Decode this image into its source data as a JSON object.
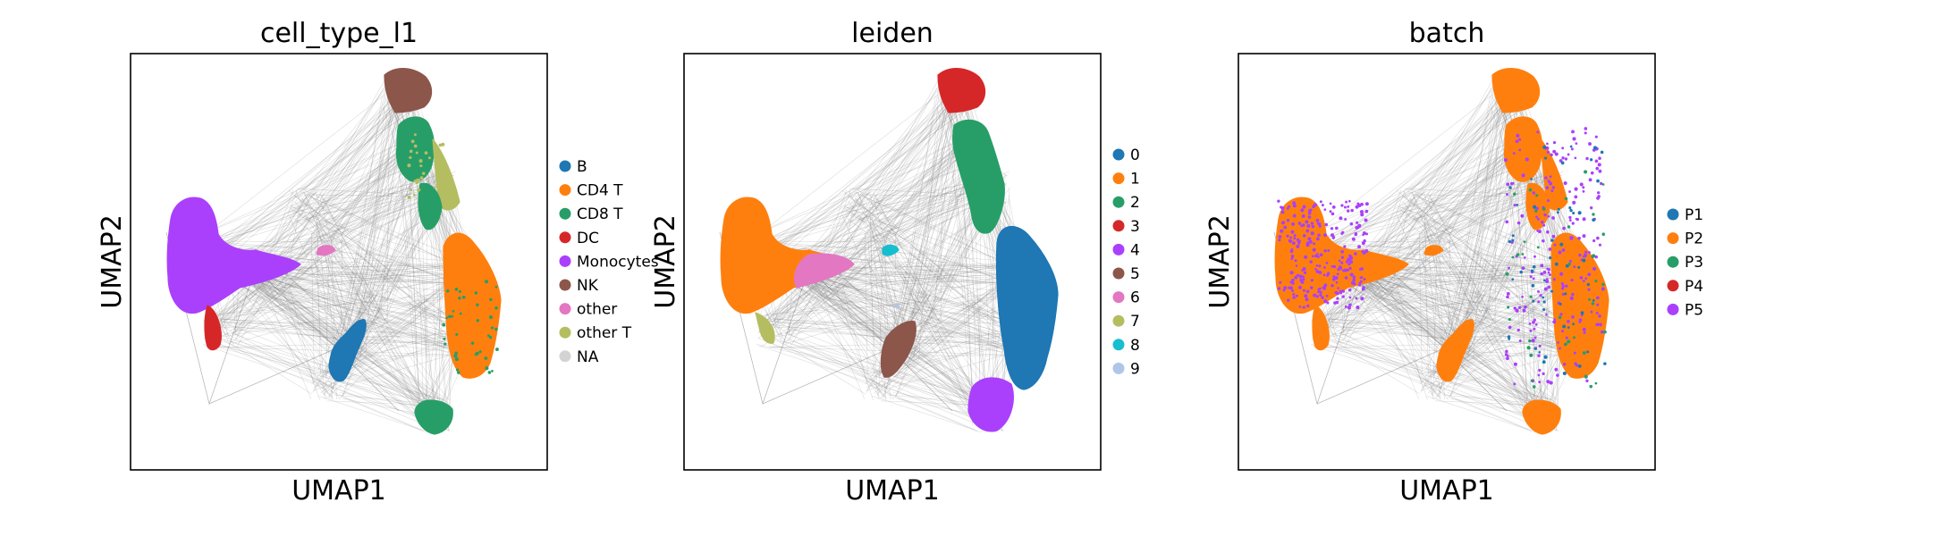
{
  "chart_data": [
    {
      "type": "scatter",
      "title": "cell_type_l1",
      "xlabel": "UMAP1",
      "ylabel": "UMAP2",
      "ticks": "none",
      "legend_position": "right",
      "legend": [
        {
          "label": "B",
          "color": "#1f77b4"
        },
        {
          "label": "CD4 T",
          "color": "#ff7f0e"
        },
        {
          "label": "CD8 T",
          "color": "#279e68"
        },
        {
          "label": "DC",
          "color": "#d62728"
        },
        {
          "label": "Monocytes",
          "color": "#aa40fc"
        },
        {
          "label": "NK",
          "color": "#8c564b"
        },
        {
          "label": "other",
          "color": "#e377c2"
        },
        {
          "label": "other T",
          "color": "#b5bd61"
        },
        {
          "label": "NA",
          "color": "#d3d3d3"
        }
      ]
    },
    {
      "type": "scatter",
      "title": "leiden",
      "xlabel": "UMAP1",
      "ylabel": "UMAP2",
      "ticks": "none",
      "legend_position": "right",
      "legend": [
        {
          "label": "0",
          "color": "#1f77b4"
        },
        {
          "label": "1",
          "color": "#ff7f0e"
        },
        {
          "label": "2",
          "color": "#279e68"
        },
        {
          "label": "3",
          "color": "#d62728"
        },
        {
          "label": "4",
          "color": "#aa40fc"
        },
        {
          "label": "5",
          "color": "#8c564b"
        },
        {
          "label": "6",
          "color": "#e377c2"
        },
        {
          "label": "7",
          "color": "#b5bd61"
        },
        {
          "label": "8",
          "color": "#17becf"
        },
        {
          "label": "9",
          "color": "#aec7e8"
        }
      ]
    },
    {
      "type": "scatter",
      "title": "batch",
      "xlabel": "UMAP1",
      "ylabel": "UMAP2",
      "ticks": "none",
      "legend_position": "right",
      "legend": [
        {
          "label": "P1",
          "color": "#1f77b4"
        },
        {
          "label": "P2",
          "color": "#ff7f0e"
        },
        {
          "label": "P3",
          "color": "#279e68"
        },
        {
          "label": "P4",
          "color": "#d62728"
        },
        {
          "label": "P5",
          "color": "#aa40fc"
        }
      ]
    }
  ],
  "colors": {
    "graph_edges": "#808080",
    "frame": "#000000"
  }
}
